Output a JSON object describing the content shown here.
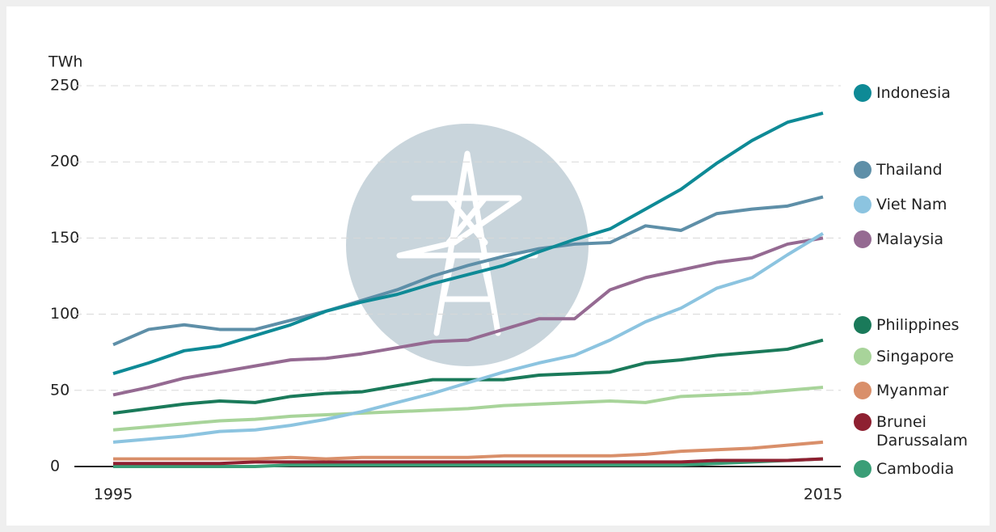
{
  "chart_data": {
    "type": "line",
    "y_label": "TWh",
    "x": [
      1995,
      1996,
      1997,
      1998,
      1999,
      2000,
      2001,
      2002,
      2003,
      2004,
      2005,
      2006,
      2007,
      2008,
      2009,
      2010,
      2011,
      2012,
      2013,
      2014,
      2015
    ],
    "xlim": [
      1995,
      2015
    ],
    "xticks": [
      1995,
      2015
    ],
    "ylim": [
      0,
      250
    ],
    "yticks": [
      0,
      50,
      100,
      150,
      200,
      250
    ],
    "grid": true,
    "series": [
      {
        "name": "Indonesia",
        "color": "#0e8a96",
        "values": [
          61,
          68,
          76,
          79,
          86,
          93,
          102,
          108,
          113,
          120,
          126,
          132,
          141,
          149,
          156,
          169,
          182,
          199,
          214,
          226,
          232
        ]
      },
      {
        "name": "Thailand",
        "color": "#5e8fa8",
        "values": [
          80,
          90,
          93,
          90,
          90,
          96,
          102,
          109,
          116,
          125,
          132,
          138,
          143,
          146,
          147,
          158,
          155,
          166,
          169,
          171,
          177
        ]
      },
      {
        "name": "Viet Nam",
        "color": "#8cc4e0",
        "values": [
          16,
          18,
          20,
          23,
          24,
          27,
          31,
          36,
          42,
          48,
          55,
          62,
          68,
          73,
          83,
          95,
          104,
          117,
          124,
          139,
          153
        ]
      },
      {
        "name": "Malaysia",
        "color": "#956a92",
        "values": [
          47,
          52,
          58,
          62,
          66,
          70,
          71,
          74,
          78,
          82,
          83,
          90,
          97,
          97,
          116,
          124,
          129,
          134,
          137,
          146,
          150
        ]
      },
      {
        "name": "Philippines",
        "color": "#1a7a5a",
        "values": [
          35,
          38,
          41,
          43,
          42,
          46,
          48,
          49,
          53,
          57,
          57,
          57,
          60,
          61,
          62,
          68,
          70,
          73,
          75,
          77,
          83
        ]
      },
      {
        "name": "Singapore",
        "color": "#a8d49a",
        "values": [
          24,
          26,
          28,
          30,
          31,
          33,
          34,
          35,
          36,
          37,
          38,
          40,
          41,
          42,
          43,
          42,
          46,
          47,
          48,
          50,
          52
        ]
      },
      {
        "name": "Myanmar",
        "color": "#d98f6a",
        "values": [
          5,
          5,
          5,
          5,
          5,
          6,
          5,
          6,
          6,
          6,
          6,
          7,
          7,
          7,
          7,
          8,
          10,
          11,
          12,
          14,
          16
        ]
      },
      {
        "name": "Brunei Darussalam",
        "color": "#8e2031",
        "values": [
          2,
          2,
          2,
          2,
          3,
          3,
          3,
          3,
          3,
          3,
          3,
          3,
          3,
          3,
          3,
          3,
          3,
          4,
          4,
          4,
          5
        ]
      },
      {
        "name": "Cambodia",
        "color": "#3a9e77",
        "values": [
          0,
          0,
          0,
          0,
          0,
          1,
          1,
          1,
          1,
          1,
          1,
          1,
          1,
          1,
          1,
          1,
          1,
          2,
          3,
          4,
          5
        ]
      }
    ]
  }
}
